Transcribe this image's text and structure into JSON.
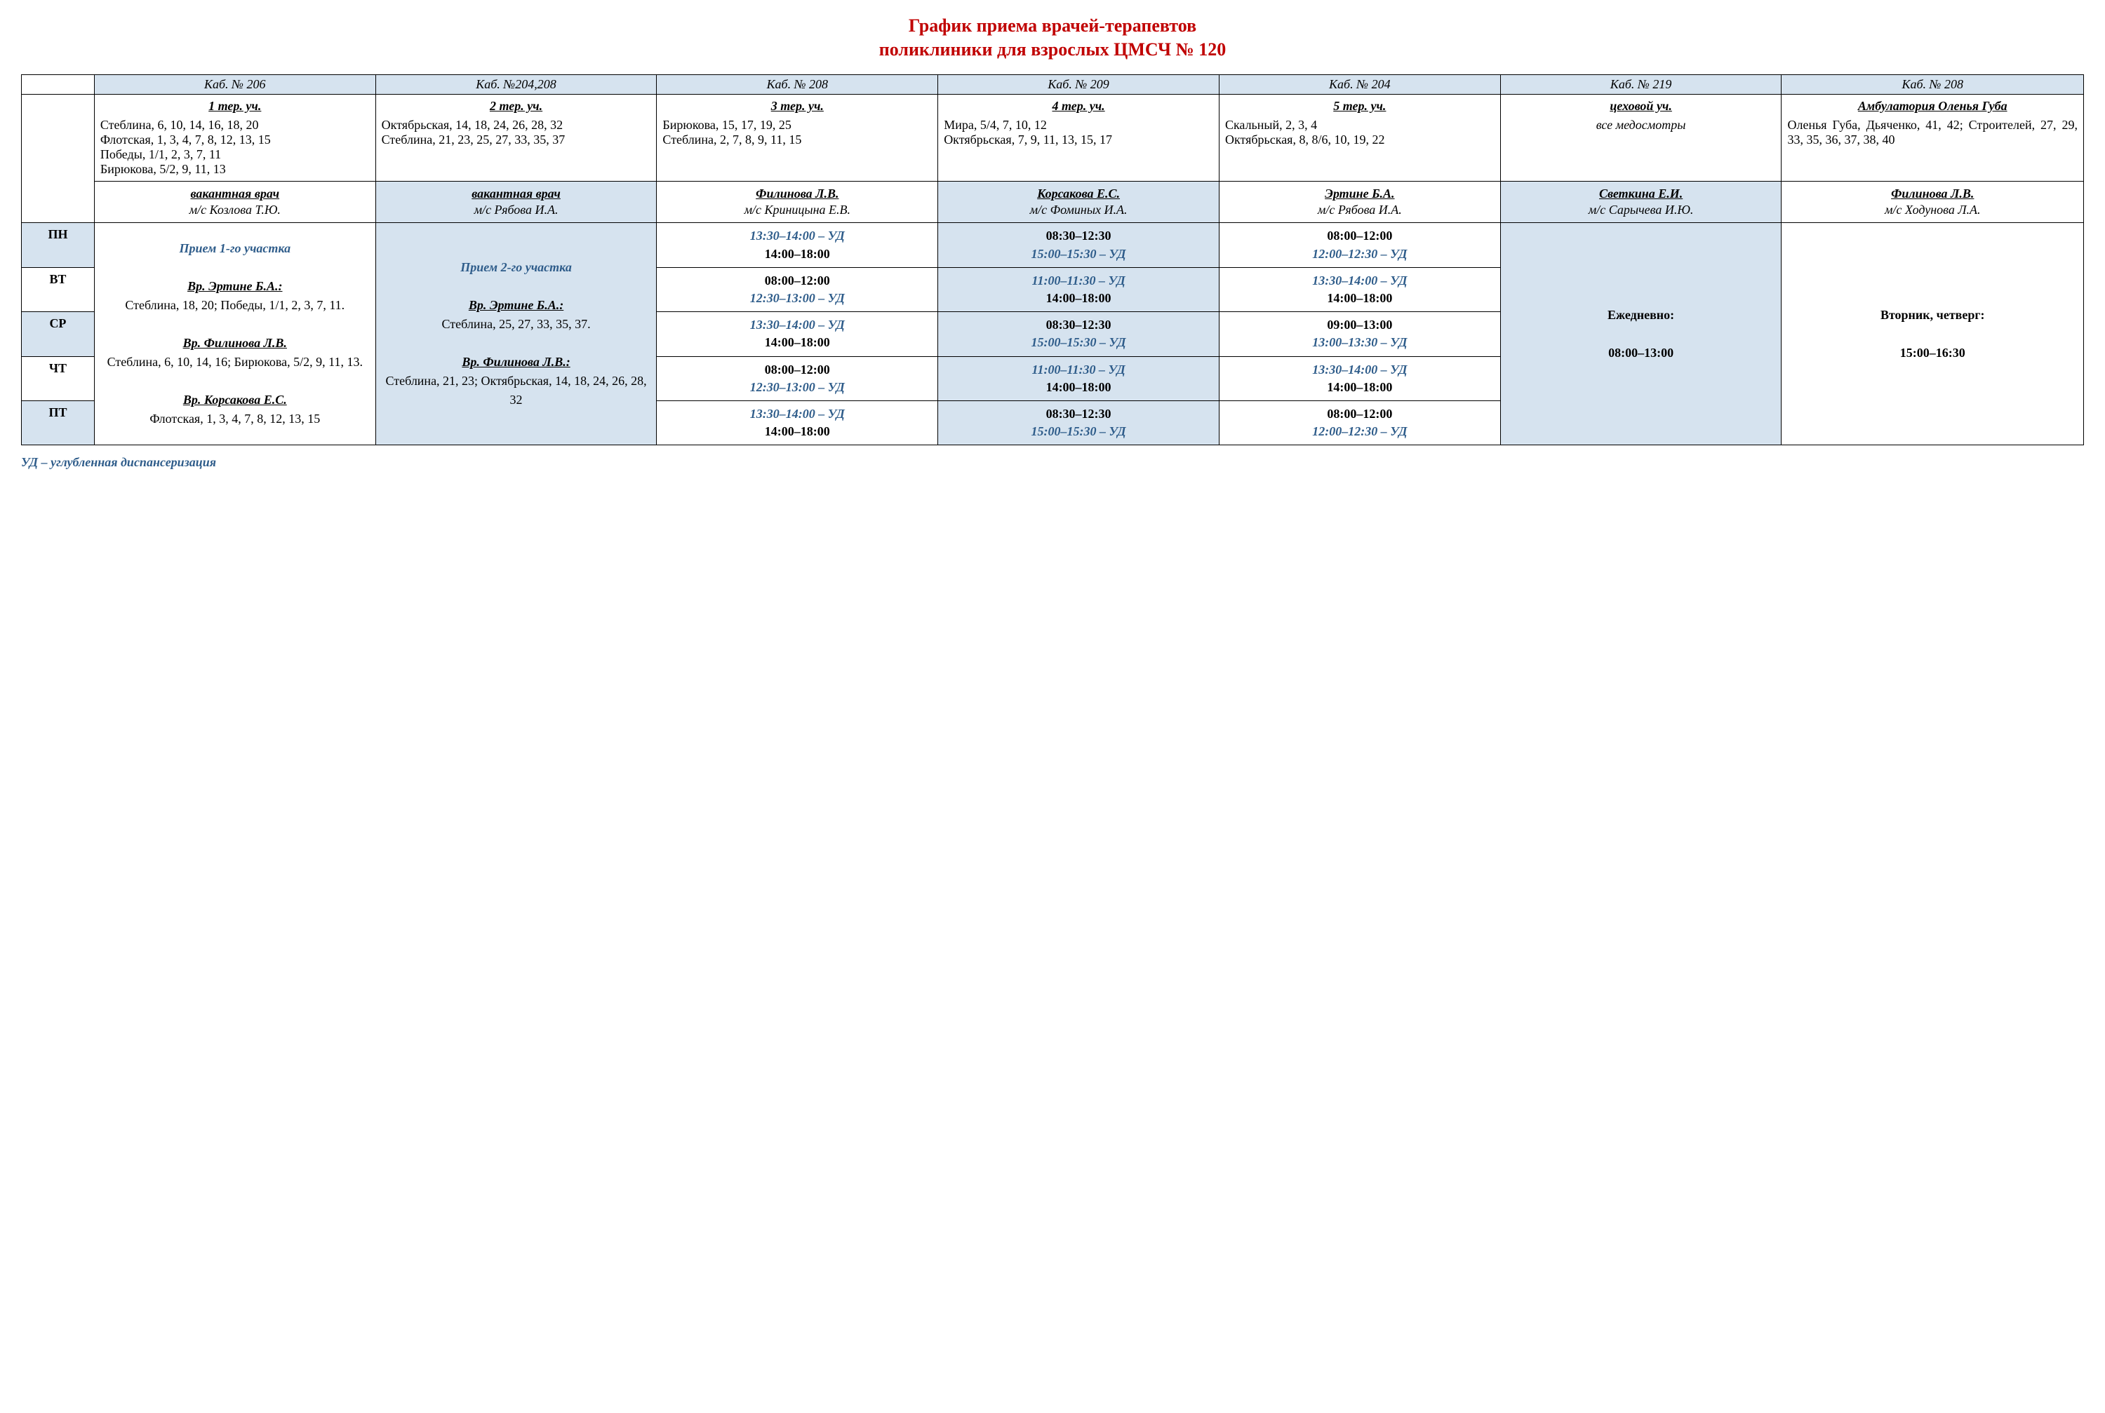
{
  "title_line1": "График приема врачей-терапевтов",
  "title_line2": "поликлиники для взрослых ЦМСЧ № 120",
  "rooms": [
    "Каб. № 206",
    "Каб. №204,208",
    "Каб. № 208",
    "Каб. № 209",
    "Каб. № 204",
    "Каб. № 219",
    "Каб. № 208"
  ],
  "areas": {
    "a1": {
      "hdr": "1 тер. уч.",
      "addr": "Стеблина, 6, 10, 14, 16, 18, 20\nФлотская, 1, 3, 4, 7, 8, 12, 13, 15\nПобеды, 1/1, 2, 3, 7, 11\nБирюкова, 5/2, 9, 11, 13"
    },
    "a2": {
      "hdr": "2 тер. уч.",
      "addr": "Октябрьская, 14, 18, 24, 26, 28, 32\nСтеблина, 21, 23, 25, 27, 33, 35, 37"
    },
    "a3": {
      "hdr": "3 тер. уч.",
      "addr": "Бирюкова, 15, 17, 19, 25\nСтеблина, 2, 7, 8, 9, 11, 15"
    },
    "a4": {
      "hdr": "4 тер. уч.",
      "addr": "Мира, 5/4, 7, 10, 12\nОктябрьская, 7, 9, 11, 13, 15, 17"
    },
    "a5": {
      "hdr": "5 тер. уч.",
      "addr": "Скальный, 2, 3, 4\nОктябрьская, 8, 8/6, 10, 19, 22"
    },
    "a6": {
      "hdr": "цеховой уч.",
      "sub": "все медосмотры"
    },
    "a7": {
      "hdr": "Амбулатория Оленья Губа",
      "addr": "Оленья Губа, Дьяченко, 41, 42; Строителей, 27, 29, 33, 35, 36, 37, 38, 40"
    }
  },
  "doctors": {
    "d1": {
      "name": "вакантная врач",
      "nurse": "м/с Козлова Т.Ю."
    },
    "d2": {
      "name": "вакантная врач",
      "nurse": "м/с Рябова И.А."
    },
    "d3": {
      "name": "Филинова Л.В.",
      "nurse": "м/с Криницына Е.В."
    },
    "d4": {
      "name": "Корсакова Е.С.",
      "nurse": "м/с Фоминых И.А."
    },
    "d5": {
      "name": "Эртине Б.А.",
      "nurse": "м/с Рябова И.А."
    },
    "d6": {
      "name": "Светкина Е.И.",
      "nurse": "м/с Сарычева И.Ю."
    },
    "d7": {
      "name": "Филинова Л.В.",
      "nurse": "м/с Ходунова Л.А."
    }
  },
  "days": {
    "mon": "ПН",
    "tue": "ВТ",
    "wed": "СР",
    "thu": "ЧТ",
    "fri": "ПТ"
  },
  "col1_block": {
    "title": "Прием 1-го участка",
    "d1_hdr": "Вр. Эртине Б.А.:",
    "d1_txt": "Стеблина, 18, 20; Победы, 1/1, 2, 3, 7, 11.",
    "d2_hdr": "Вр. Филинова Л.В.",
    "d2_txt": "Стеблина, 6, 10, 14, 16; Бирюкова, 5/2, 9, 11, 13.",
    "d3_hdr": "Вр. Корсакова Е.С.",
    "d3_txt": "Флотская, 1, 3, 4, 7, 8, 12, 13, 15"
  },
  "col2_block": {
    "title": "Прием 2-го участка",
    "d1_hdr": "Вр. Эртине Б.А.:",
    "d1_txt": "Стеблина, 25, 27, 33, 35, 37.",
    "d2_hdr": "Вр. Филинова Л.В.:",
    "d2_txt": "Стеблина, 21, 23; Октябрьская, 14, 18, 24, 26, 28, 32"
  },
  "col6_block": {
    "l1": "Ежедневно:",
    "l2": "08:00–13:00"
  },
  "col7_block": {
    "l1": "Вторник, четверг:",
    "l2": "15:00–16:30"
  },
  "sched": {
    "c3": {
      "mon": {
        "ud": "13:30–14:00 – УД",
        "t": "14:00–18:00"
      },
      "tue": {
        "t": "08:00–12:00",
        "ud": "12:30–13:00 – УД"
      },
      "wed": {
        "ud": "13:30–14:00 – УД",
        "t": "14:00–18:00"
      },
      "thu": {
        "t": "08:00–12:00",
        "ud": "12:30–13:00 – УД"
      },
      "fri": {
        "ud": "13:30–14:00 – УД",
        "t": "14:00–18:00"
      }
    },
    "c4": {
      "mon": {
        "t": "08:30–12:30",
        "ud": "15:00–15:30 – УД"
      },
      "tue": {
        "ud": "11:00–11:30 – УД",
        "t": "14:00–18:00"
      },
      "wed": {
        "t": "08:30–12:30",
        "ud": "15:00–15:30 – УД"
      },
      "thu": {
        "ud": "11:00–11:30 – УД",
        "t": "14:00–18:00"
      },
      "fri": {
        "t": "08:30–12:30",
        "ud": "15:00–15:30 – УД"
      }
    },
    "c5": {
      "mon": {
        "t": "08:00–12:00",
        "ud": "12:00–12:30 – УД"
      },
      "tue": {
        "ud": "13:30–14:00 – УД",
        "t": "14:00–18:00"
      },
      "wed": {
        "t": "09:00–13:00",
        "ud": "13:00–13:30 – УД"
      },
      "thu": {
        "ud": "13:30–14:00 – УД",
        "t": "14:00–18:00"
      },
      "fri": {
        "t": "08:00–12:00",
        "ud": "12:00–12:30 – УД"
      }
    }
  },
  "footnote": "УД – углубленная диспансеризация"
}
